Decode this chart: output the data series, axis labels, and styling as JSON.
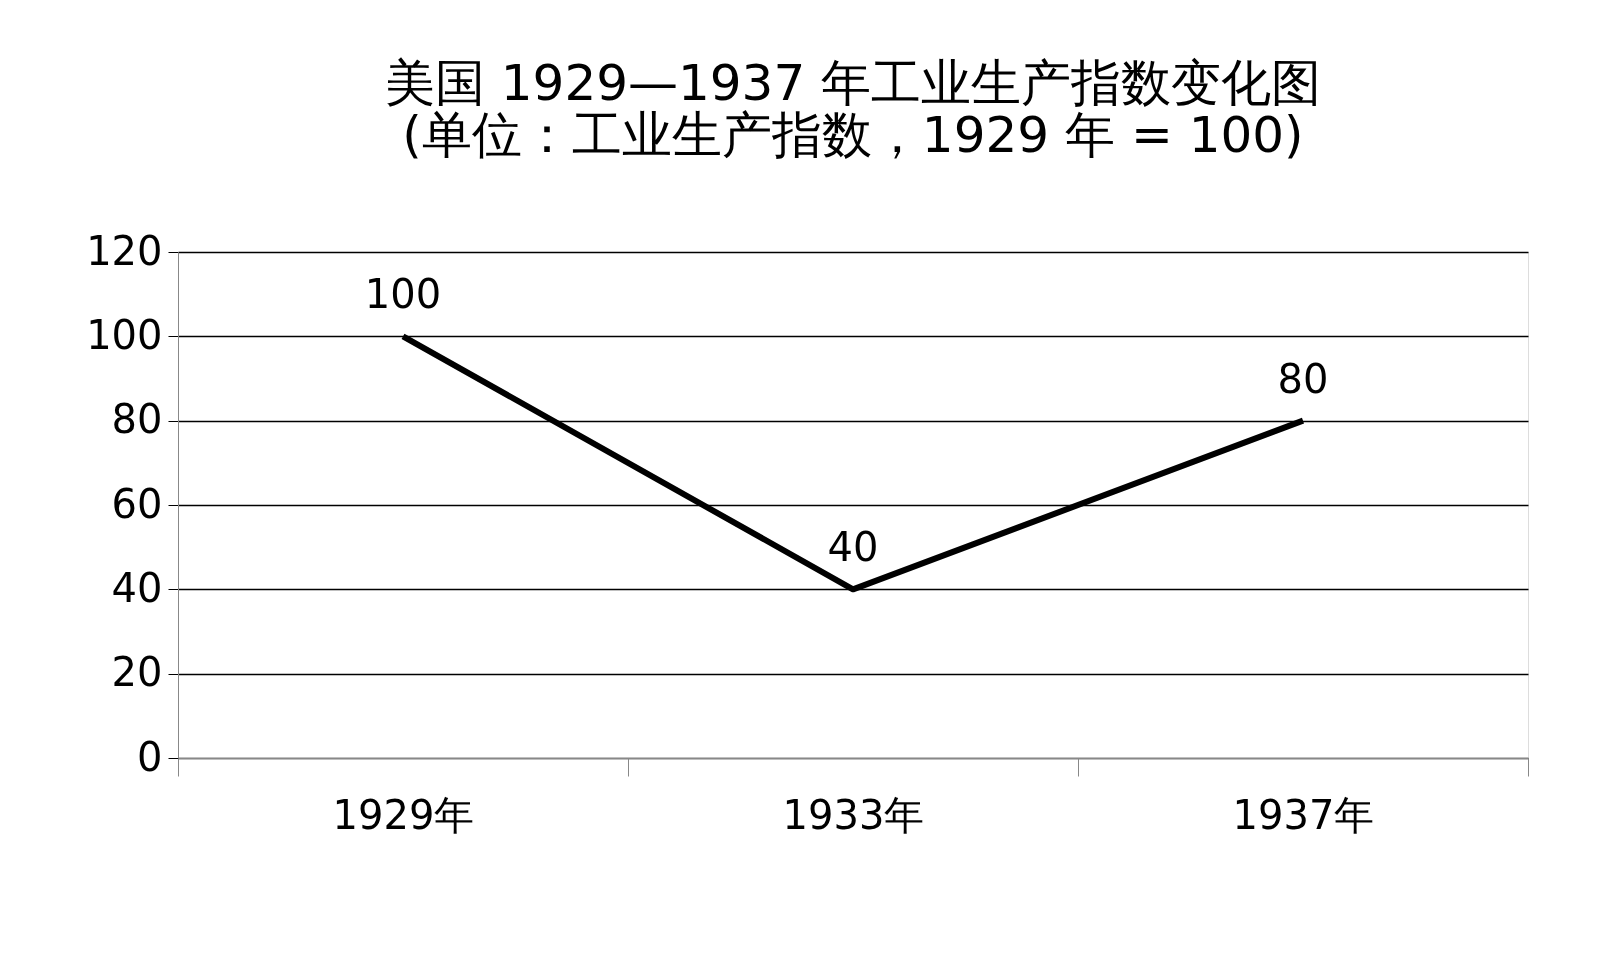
{
  "chart_data": {
    "type": "line",
    "title": [
      "美国 1929—1937 年工业生产指数变化图",
      "(单位：工业生产指数，1929 年 = 100)"
    ],
    "categories": [
      "1929年",
      "1933年",
      "1937年"
    ],
    "values": [
      100,
      40,
      80
    ],
    "color": "#000000",
    "ylim": [
      0,
      120
    ],
    "yticks": [
      0,
      20,
      40,
      60,
      80,
      100,
      120
    ],
    "grid": "y",
    "data_labels": true,
    "marker": "none"
  }
}
